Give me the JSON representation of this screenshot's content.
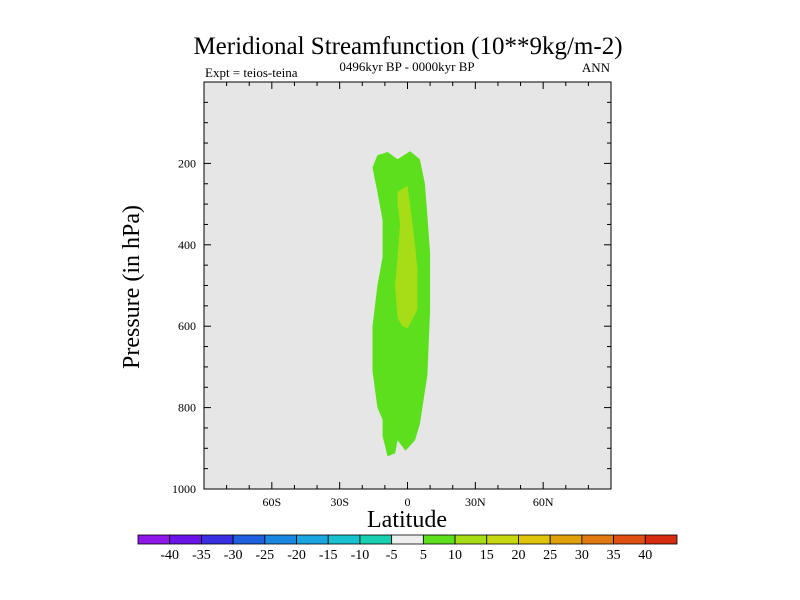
{
  "chart_data": {
    "type": "contour",
    "title": "Meridional Streamfunction (10**9kg/m-2)",
    "subtitle_left": "Expt = teios-teina",
    "subtitle_center": "0496kyr BP - 0000kyr BP",
    "subtitle_right": "ANN",
    "xlabel": "Latitude",
    "ylabel": "Pressure (in hPa)",
    "xlim": [
      -90,
      90
    ],
    "ylim": [
      1000,
      0
    ],
    "x_ticks": [
      {
        "value": -60,
        "label": "60S"
      },
      {
        "value": -30,
        "label": "30S"
      },
      {
        "value": 0,
        "label": "0"
      },
      {
        "value": 30,
        "label": "30N"
      },
      {
        "value": 60,
        "label": "60N"
      }
    ],
    "y_ticks": [
      {
        "value": 200,
        "label": "200"
      },
      {
        "value": 400,
        "label": "400"
      },
      {
        "value": 600,
        "label": "600"
      },
      {
        "value": 800,
        "label": "800"
      },
      {
        "value": 1000,
        "label": "1000"
      }
    ],
    "background_color": "#e6e6e6",
    "regions": [
      {
        "name": "5-10 band",
        "level": "5 to 10",
        "color": "#5ce01e",
        "points": [
          [
            -13.3,
            180
          ],
          [
            -8.8,
            172
          ],
          [
            -4.4,
            190
          ],
          [
            1.1,
            170
          ],
          [
            5.5,
            190
          ],
          [
            7.7,
            250
          ],
          [
            8.8,
            330
          ],
          [
            10.0,
            420
          ],
          [
            10.0,
            560
          ],
          [
            8.8,
            720
          ],
          [
            6.6,
            800
          ],
          [
            5.5,
            840
          ],
          [
            3.3,
            880
          ],
          [
            -0.9,
            906
          ],
          [
            -4.4,
            880
          ],
          [
            -5.5,
            912
          ],
          [
            -8.8,
            920
          ],
          [
            -11.0,
            870
          ],
          [
            -11.0,
            830
          ],
          [
            -13.3,
            800
          ],
          [
            -15.5,
            710
          ],
          [
            -15.5,
            600
          ],
          [
            -13.3,
            500
          ],
          [
            -11.0,
            430
          ],
          [
            -11.0,
            340
          ],
          [
            -13.3,
            270
          ],
          [
            -14.4,
            240
          ],
          [
            -15.5,
            210
          ]
        ]
      },
      {
        "name": "10-15 band",
        "level": "10 to 15",
        "color": "#a6dd16",
        "points": [
          [
            -4.4,
            270
          ],
          [
            0.0,
            255
          ],
          [
            1.1,
            300
          ],
          [
            2.2,
            350
          ],
          [
            3.3,
            400
          ],
          [
            4.4,
            460
          ],
          [
            4.4,
            560
          ],
          [
            0.0,
            605
          ],
          [
            -2.2,
            600
          ],
          [
            -4.4,
            580
          ],
          [
            -5.5,
            500
          ],
          [
            -4.4,
            430
          ],
          [
            -3.3,
            350
          ],
          [
            -4.4,
            300
          ]
        ]
      }
    ],
    "colorbar": {
      "labels": [
        "-40",
        "-35",
        "-30",
        "-25",
        "-20",
        "-15",
        "-10",
        "-5",
        "5",
        "10",
        "15",
        "20",
        "25",
        "30",
        "35",
        "40"
      ],
      "colors": [
        "#8f18e8",
        "#6a14e8",
        "#3a2fe2",
        "#2060e0",
        "#1a88e0",
        "#1aa6e0",
        "#18c0d0",
        "#18d0b0",
        "#eeeeee",
        "#5ce01e",
        "#a6dd16",
        "#c8d810",
        "#e0c40c",
        "#e0a00c",
        "#e07a10",
        "#e05012",
        "#d82c10"
      ]
    }
  }
}
